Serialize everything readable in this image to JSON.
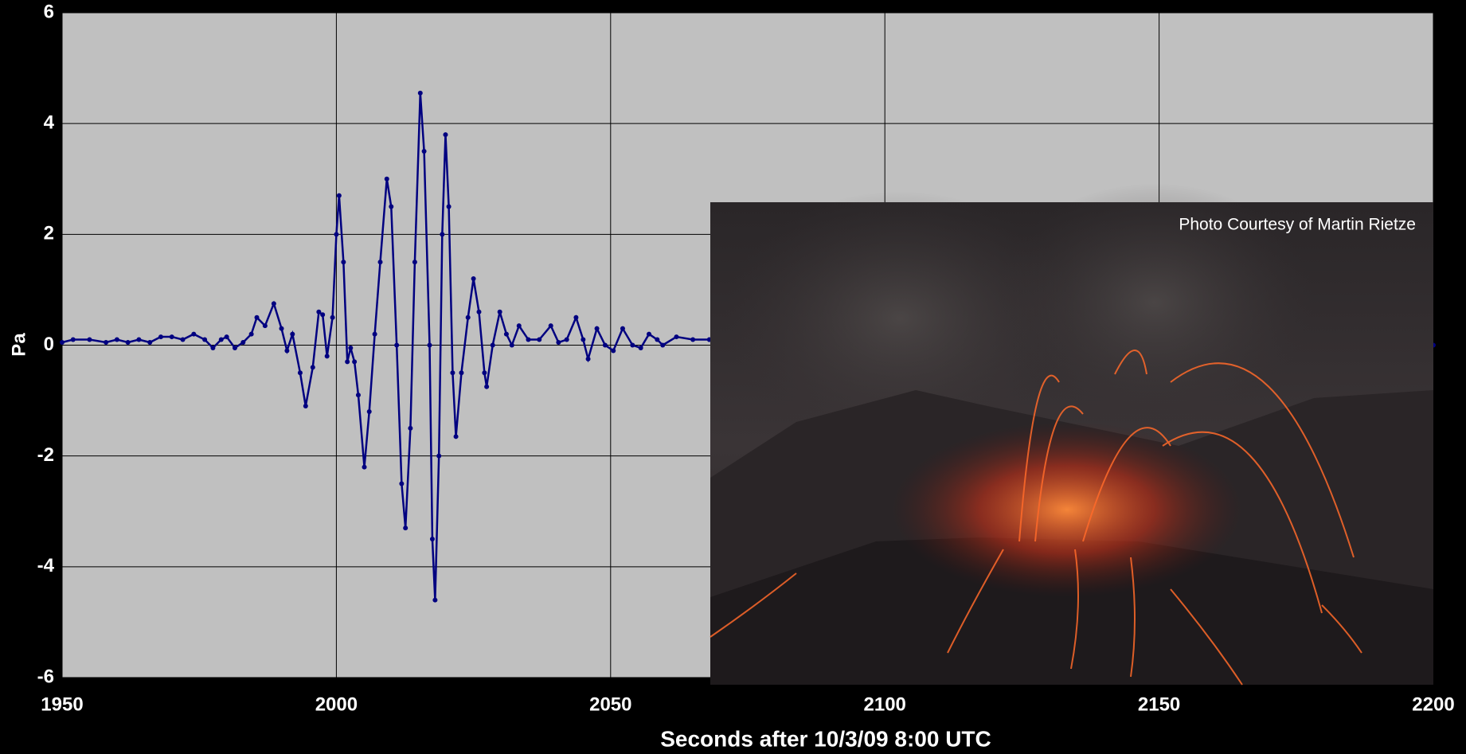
{
  "chart_data": {
    "type": "line",
    "y_label": "Pa",
    "x_label": "Seconds after 10/3/09 8:00 UTC",
    "annotation": "Photo Courtesy of Martin Rietze",
    "color": "#000080",
    "x": [
      1950,
      1952,
      1955,
      1958,
      1960,
      1962,
      1964,
      1966,
      1968,
      1970,
      1972,
      1974,
      1976,
      1977.5,
      1979,
      1980,
      1981.5,
      1983,
      1984.5,
      1985.5,
      1987,
      1988.6,
      1990,
      1991,
      1992,
      1993.4,
      1994.4,
      1995.7,
      1996.8,
      1997.5,
      1998.3,
      1999.3,
      2000,
      2000.5,
      2001.3,
      2002,
      2002.6,
      2003.3,
      2004,
      2005.1,
      2006,
      2007,
      2008,
      2009.2,
      2010,
      2011,
      2011.9,
      2012.6,
      2013.5,
      2014.3,
      2015.3,
      2016,
      2017,
      2017.5,
      2018,
      2018.7,
      2019.3,
      2019.9,
      2020.5,
      2021.2,
      2021.8,
      2022.8,
      2024,
      2025,
      2026,
      2027,
      2027.4,
      2028.5,
      2029.8,
      2031,
      2032,
      2033.3,
      2035,
      2037,
      2039.1,
      2040.5,
      2042,
      2043.7,
      2045,
      2045.9,
      2047.5,
      2049,
      2050.5,
      2052.2,
      2054,
      2055.5,
      2057,
      2058.5,
      2059.5,
      2062,
      2065,
      2068,
      2200
    ],
    "values": [
      0.05,
      0.1,
      0.1,
      0.05,
      0.1,
      0.05,
      0.1,
      0.05,
      0.15,
      0.15,
      0.1,
      0.2,
      0.1,
      -0.05,
      0.1,
      0.15,
      -0.05,
      0.05,
      0.2,
      0.5,
      0.35,
      0.75,
      0.3,
      -0.1,
      0.2,
      -0.5,
      -1.1,
      -0.4,
      0.6,
      0.55,
      -0.2,
      0.5,
      2.0,
      2.7,
      1.5,
      -0.3,
      -0.05,
      -0.3,
      -0.9,
      -2.2,
      -1.2,
      0.2,
      1.5,
      3.0,
      2.5,
      0,
      -2.5,
      -3.3,
      -1.5,
      1.5,
      4.55,
      3.5,
      0,
      -3.5,
      -4.6,
      -2.0,
      2.0,
      3.8,
      2.5,
      -0.5,
      -1.65,
      -0.5,
      0.5,
      1.2,
      0.6,
      -0.5,
      -0.75,
      0,
      0.6,
      0.2,
      0,
      0.35,
      0.1,
      0.1,
      0.35,
      0.05,
      0.1,
      0.5,
      0.1,
      -0.25,
      0.3,
      0,
      -0.1,
      0.3,
      0,
      -0.05,
      0.2,
      0.1,
      0,
      0.15,
      0.1,
      0.1,
      0
    ],
    "xlim": [
      1950,
      2200
    ],
    "xticks": [
      1950,
      2000,
      2050,
      2100,
      2150,
      2200
    ],
    "ylim": [
      -6,
      6
    ],
    "yticks": [
      -6,
      -4,
      -2,
      0,
      2,
      4,
      6
    ],
    "grid": true
  }
}
